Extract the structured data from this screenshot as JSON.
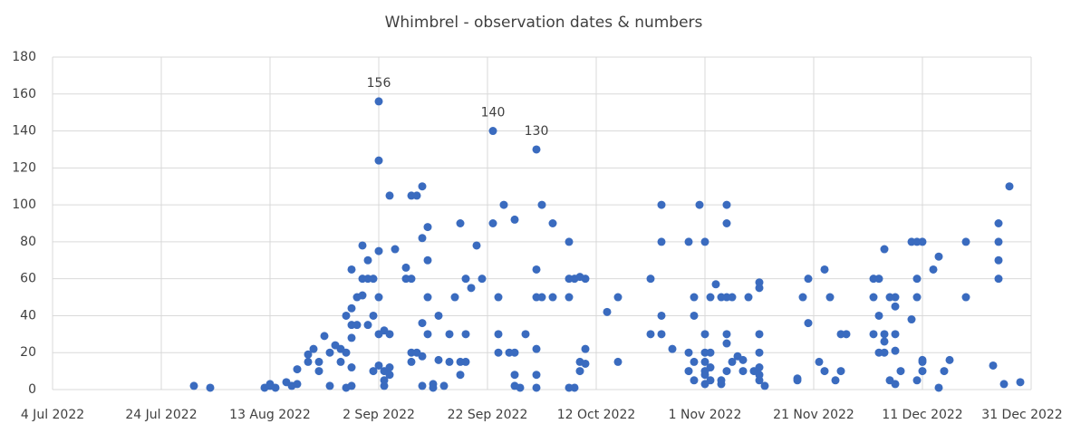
{
  "chart_data": {
    "type": "scatter",
    "title": "Whimbrel - observation dates & numbers",
    "color": "#3a6bbf",
    "grid": true,
    "xlim": [
      "2022-07-04",
      "2022-12-31"
    ],
    "xticks": [
      {
        "value": "2022-07-04",
        "label": "4 Jul 2022"
      },
      {
        "value": "2022-07-24",
        "label": "24 Jul 2022"
      },
      {
        "value": "2022-08-13",
        "label": "13 Aug 2022"
      },
      {
        "value": "2022-09-02",
        "label": "2 Sep 2022"
      },
      {
        "value": "2022-09-22",
        "label": "22 Sep 2022"
      },
      {
        "value": "2022-10-12",
        "label": "12 Oct 2022"
      },
      {
        "value": "2022-11-01",
        "label": "1 Nov 2022"
      },
      {
        "value": "2022-11-21",
        "label": "21 Nov 2022"
      },
      {
        "value": "2022-12-11",
        "label": "11 Dec 2022"
      },
      {
        "value": "2022-12-31",
        "label": "31 Dec 2022"
      }
    ],
    "ylim": [
      0,
      180
    ],
    "yticks": [
      0,
      20,
      40,
      60,
      80,
      100,
      120,
      140,
      160,
      180
    ],
    "x": [
      "2022-07-30",
      "2022-08-02",
      "2022-08-12",
      "2022-08-13",
      "2022-08-13",
      "2022-08-14",
      "2022-08-16",
      "2022-08-17",
      "2022-08-18",
      "2022-08-18",
      "2022-08-20",
      "2022-08-20",
      "2022-08-21",
      "2022-08-22",
      "2022-08-22",
      "2022-08-23",
      "2022-08-24",
      "2022-08-24",
      "2022-08-25",
      "2022-08-26",
      "2022-08-26",
      "2022-08-27",
      "2022-08-27",
      "2022-08-27",
      "2022-08-28",
      "2022-08-28",
      "2022-08-28",
      "2022-08-28",
      "2022-08-28",
      "2022-08-28",
      "2022-08-29",
      "2022-08-29",
      "2022-08-30",
      "2022-08-30",
      "2022-08-30",
      "2022-08-31",
      "2022-08-31",
      "2022-08-31",
      "2022-09-01",
      "2022-09-01",
      "2022-09-01",
      "2022-09-02",
      "2022-09-02",
      "2022-09-02",
      "2022-09-02",
      "2022-09-02",
      "2022-09-02",
      "2022-09-03",
      "2022-09-03",
      "2022-09-03",
      "2022-09-03",
      "2022-09-04",
      "2022-09-04",
      "2022-09-04",
      "2022-09-04",
      "2022-09-05",
      "2022-09-07",
      "2022-09-07",
      "2022-09-08",
      "2022-09-08",
      "2022-09-08",
      "2022-09-08",
      "2022-09-09",
      "2022-09-09",
      "2022-09-10",
      "2022-09-10",
      "2022-09-10",
      "2022-09-10",
      "2022-09-10",
      "2022-09-11",
      "2022-09-11",
      "2022-09-11",
      "2022-09-11",
      "2022-09-12",
      "2022-09-12",
      "2022-09-13",
      "2022-09-13",
      "2022-09-14",
      "2022-09-15",
      "2022-09-15",
      "2022-09-16",
      "2022-09-17",
      "2022-09-17",
      "2022-09-17",
      "2022-09-18",
      "2022-09-18",
      "2022-09-18",
      "2022-09-19",
      "2022-09-20",
      "2022-09-21",
      "2022-09-23",
      "2022-09-23",
      "2022-09-24",
      "2022-09-24",
      "2022-09-24",
      "2022-09-25",
      "2022-09-26",
      "2022-09-27",
      "2022-09-27",
      "2022-09-27",
      "2022-09-27",
      "2022-09-28",
      "2022-09-29",
      "2022-10-01",
      "2022-10-01",
      "2022-10-01",
      "2022-10-01",
      "2022-10-01",
      "2022-10-01",
      "2022-10-02",
      "2022-10-02",
      "2022-10-04",
      "2022-10-04",
      "2022-10-07",
      "2022-10-07",
      "2022-10-07",
      "2022-10-07",
      "2022-10-08",
      "2022-10-08",
      "2022-10-09",
      "2022-10-09",
      "2022-10-09",
      "2022-10-10",
      "2022-10-10",
      "2022-10-10",
      "2022-10-14",
      "2022-10-16",
      "2022-10-16",
      "2022-10-22",
      "2022-10-22",
      "2022-10-24",
      "2022-10-24",
      "2022-10-24",
      "2022-10-24",
      "2022-10-26",
      "2022-10-29",
      "2022-10-29",
      "2022-10-29",
      "2022-10-30",
      "2022-10-30",
      "2022-10-30",
      "2022-10-30",
      "2022-10-31",
      "2022-11-01",
      "2022-11-01",
      "2022-11-01",
      "2022-11-01",
      "2022-11-01",
      "2022-11-01",
      "2022-11-01",
      "2022-11-02",
      "2022-11-02",
      "2022-11-02",
      "2022-11-02",
      "2022-11-03",
      "2022-11-04",
      "2022-11-04",
      "2022-11-04",
      "2022-11-05",
      "2022-11-05",
      "2022-11-05",
      "2022-11-05",
      "2022-11-05",
      "2022-11-05",
      "2022-11-06",
      "2022-11-06",
      "2022-11-07",
      "2022-11-08",
      "2022-11-08",
      "2022-11-09",
      "2022-11-10",
      "2022-11-11",
      "2022-11-11",
      "2022-11-11",
      "2022-11-11",
      "2022-11-11",
      "2022-11-11",
      "2022-11-11",
      "2022-11-12",
      "2022-11-18",
      "2022-11-18",
      "2022-11-19",
      "2022-11-20",
      "2022-11-20",
      "2022-11-22",
      "2022-11-23",
      "2022-11-23",
      "2022-11-24",
      "2022-11-25",
      "2022-11-26",
      "2022-11-26",
      "2022-11-27",
      "2022-12-02",
      "2022-12-02",
      "2022-12-02",
      "2022-12-03",
      "2022-12-03",
      "2022-12-03",
      "2022-12-04",
      "2022-12-04",
      "2022-12-04",
      "2022-12-04",
      "2022-12-05",
      "2022-12-05",
      "2022-12-06",
      "2022-12-06",
      "2022-12-06",
      "2022-12-06",
      "2022-12-06",
      "2022-12-07",
      "2022-12-09",
      "2022-12-09",
      "2022-12-10",
      "2022-12-10",
      "2022-12-10",
      "2022-12-10",
      "2022-12-11",
      "2022-12-11",
      "2022-12-11",
      "2022-12-11",
      "2022-12-13",
      "2022-12-14",
      "2022-12-14",
      "2022-12-15",
      "2022-12-16",
      "2022-12-19",
      "2022-12-19",
      "2022-12-24",
      "2022-12-25",
      "2022-12-25",
      "2022-12-25",
      "2022-12-25",
      "2022-12-26",
      "2022-12-27",
      "2022-12-29"
    ],
    "values": [
      2,
      1,
      1,
      3,
      2,
      1,
      4,
      2,
      11,
      3,
      15,
      19,
      22,
      15,
      10,
      29,
      2,
      20,
      24,
      15,
      22,
      40,
      1,
      20,
      44,
      35,
      12,
      28,
      2,
      65,
      50,
      35,
      51,
      60,
      78,
      70,
      35,
      60,
      40,
      60,
      10,
      156,
      124,
      30,
      75,
      50,
      13,
      32,
      2,
      10,
      5,
      105,
      12,
      30,
      8,
      76,
      66,
      60,
      105,
      20,
      60,
      15,
      20,
      105,
      110,
      82,
      36,
      18,
      2,
      70,
      50,
      88,
      30,
      3,
      1,
      40,
      16,
      2,
      30,
      15,
      50,
      8,
      15,
      90,
      15,
      60,
      30,
      55,
      78,
      60,
      140,
      90,
      50,
      30,
      20,
      100,
      20,
      20,
      92,
      2,
      8,
      1,
      30,
      130,
      22,
      8,
      1,
      50,
      65,
      100,
      50,
      90,
      50,
      1,
      80,
      60,
      50,
      1,
      60,
      15,
      10,
      61,
      60,
      22,
      14,
      42,
      50,
      15,
      60,
      30,
      100,
      80,
      30,
      40,
      22,
      20,
      10,
      80,
      50,
      40,
      15,
      5,
      100,
      30,
      20,
      15,
      10,
      8,
      3,
      80,
      50,
      12,
      5,
      20,
      57,
      3,
      5,
      50,
      100,
      90,
      30,
      25,
      50,
      10,
      50,
      15,
      18,
      16,
      10,
      50,
      10,
      12,
      8,
      58,
      55,
      30,
      20,
      5,
      2,
      6,
      5,
      50,
      36,
      60,
      15,
      10,
      65,
      50,
      5,
      10,
      30,
      30,
      60,
      50,
      30,
      20,
      60,
      40,
      20,
      26,
      76,
      30,
      5,
      50,
      21,
      3,
      50,
      45,
      30,
      10,
      38,
      80,
      5,
      80,
      50,
      60,
      15,
      80,
      10,
      16,
      65,
      72,
      1,
      10,
      16,
      80,
      50,
      13,
      90,
      80,
      70,
      60,
      3,
      110,
      4
    ],
    "annotations": [
      {
        "x": "2022-09-02",
        "y": 156
      },
      {
        "x": "2022-09-23",
        "y": 140
      },
      {
        "x": "2022-10-01",
        "y": 130
      }
    ]
  }
}
